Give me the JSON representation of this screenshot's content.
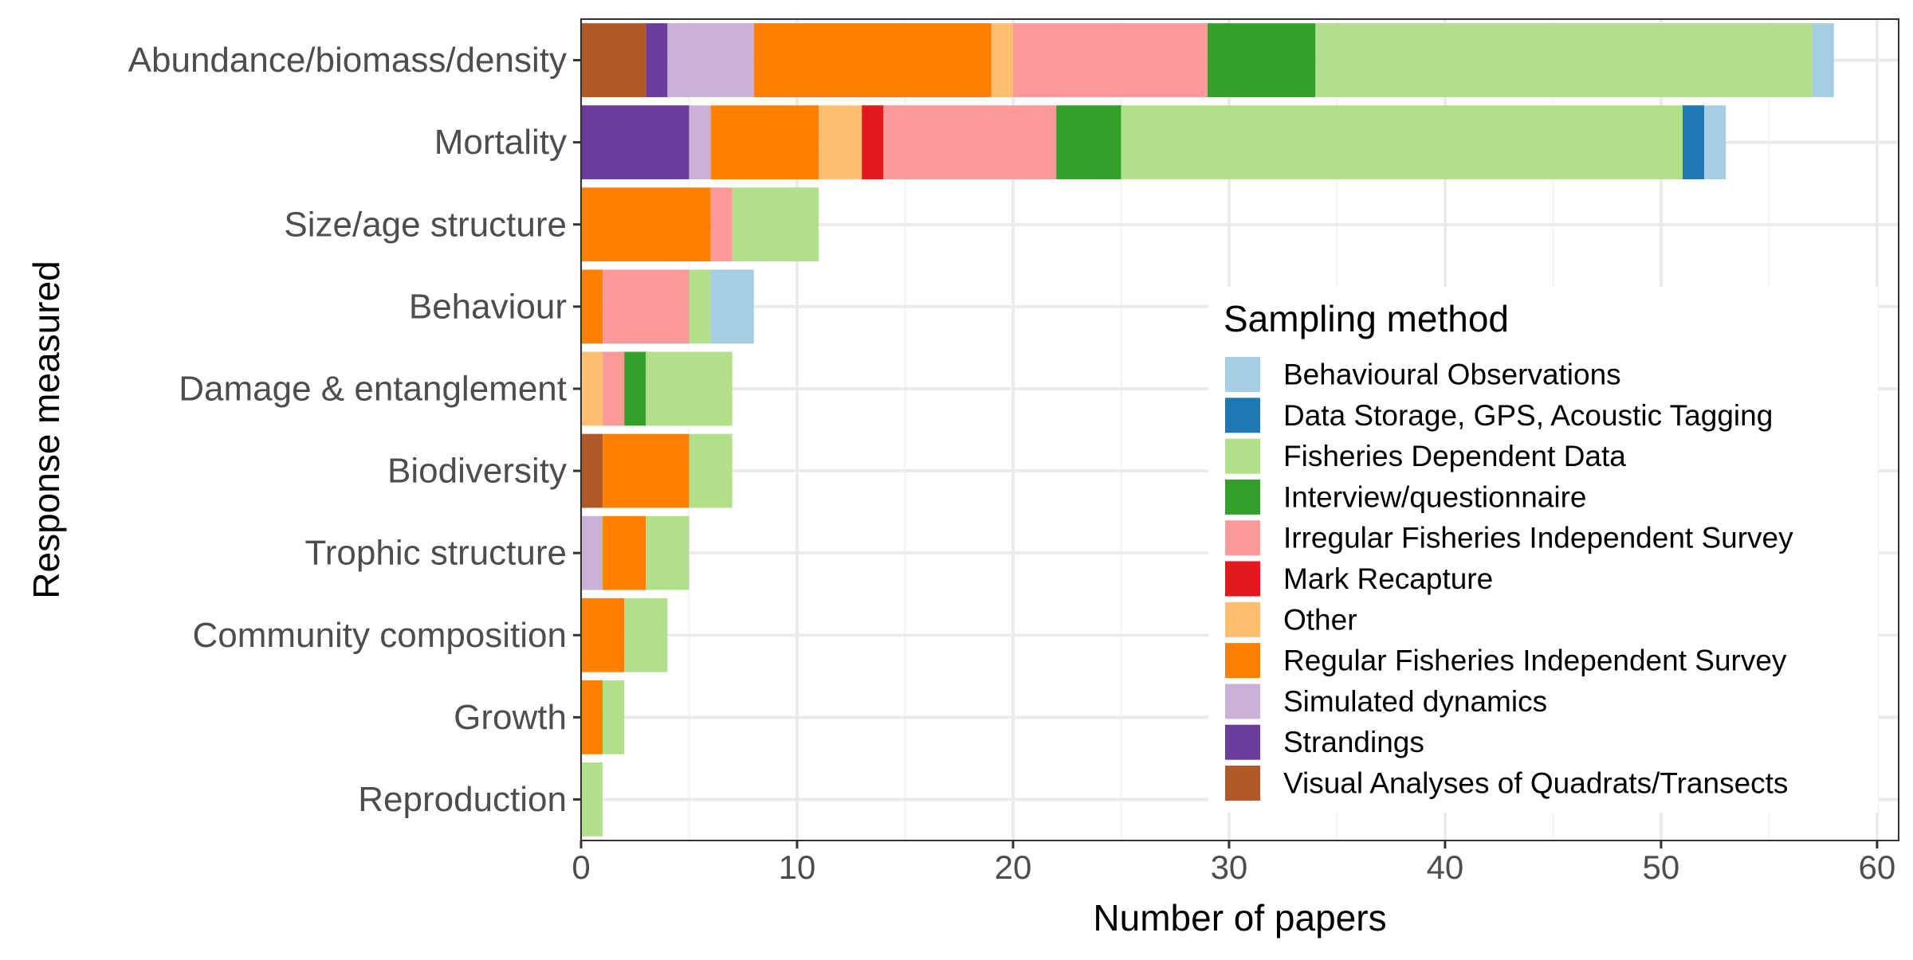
{
  "chart_data": {
    "type": "bar",
    "orientation": "horizontal",
    "stacked": true,
    "xlabel": "Number of papers",
    "ylabel": "Response measured",
    "xlim": [
      0,
      61
    ],
    "xticks": [
      0,
      10,
      20,
      30,
      40,
      50,
      60
    ],
    "grid": true,
    "legend_placement": "right",
    "legend_title": "Sampling method",
    "categories": [
      "Abundance/biomass/density",
      "Mortality",
      "Size/age structure",
      "Behaviour",
      "Damage & entanglement",
      "Biodiversity",
      "Trophic structure",
      "Community composition",
      "Growth",
      "Reproduction"
    ],
    "series": [
      {
        "name": "Visual Analyses of Quadrats/Transects",
        "color": "#b15928",
        "values": [
          3,
          0,
          0,
          0,
          0,
          1,
          0,
          0,
          0,
          0
        ]
      },
      {
        "name": "Strandings",
        "color": "#6a3d9a",
        "values": [
          1,
          5,
          0,
          0,
          0,
          0,
          0,
          0,
          0,
          0
        ]
      },
      {
        "name": "Simulated dynamics",
        "color": "#cab2d6",
        "values": [
          4,
          1,
          0,
          0,
          0,
          0,
          1,
          0,
          0,
          0
        ]
      },
      {
        "name": "Regular Fisheries Independent Survey",
        "color": "#ff7f00",
        "values": [
          11,
          5,
          6,
          1,
          0,
          4,
          2,
          2,
          1,
          0
        ]
      },
      {
        "name": "Other",
        "color": "#fdbf6f",
        "values": [
          1,
          2,
          0,
          0,
          1,
          0,
          0,
          0,
          0,
          0
        ]
      },
      {
        "name": "Mark Recapture",
        "color": "#e31a1c",
        "values": [
          0,
          1,
          0,
          0,
          0,
          0,
          0,
          0,
          0,
          0
        ]
      },
      {
        "name": "Irregular Fisheries Independent Survey",
        "color": "#fb9a99",
        "values": [
          9,
          8,
          1,
          4,
          1,
          0,
          0,
          0,
          0,
          0
        ]
      },
      {
        "name": "Interview/questionnaire",
        "color": "#33a02c",
        "values": [
          5,
          3,
          0,
          0,
          1,
          0,
          0,
          0,
          0,
          0
        ]
      },
      {
        "name": "Fisheries Dependent Data",
        "color": "#b2df8a",
        "values": [
          23,
          26,
          4,
          1,
          4,
          2,
          2,
          2,
          1,
          1
        ]
      },
      {
        "name": "Data Storage, GPS, Acoustic Tagging",
        "color": "#1f78b4",
        "values": [
          0,
          1,
          0,
          0,
          0,
          0,
          0,
          0,
          0,
          0
        ]
      },
      {
        "name": "Behavioural Observations",
        "color": "#a6cee3",
        "values": [
          1,
          1,
          0,
          2,
          0,
          0,
          0,
          0,
          0,
          0
        ]
      }
    ],
    "legend_order": [
      "Behavioural Observations",
      "Data Storage, GPS, Acoustic Tagging",
      "Fisheries Dependent Data",
      "Interview/questionnaire",
      "Irregular Fisheries Independent Survey",
      "Mark Recapture",
      "Other",
      "Regular Fisheries Independent Survey",
      "Simulated dynamics",
      "Strandings",
      "Visual Analyses of Quadrats/Transects"
    ]
  }
}
